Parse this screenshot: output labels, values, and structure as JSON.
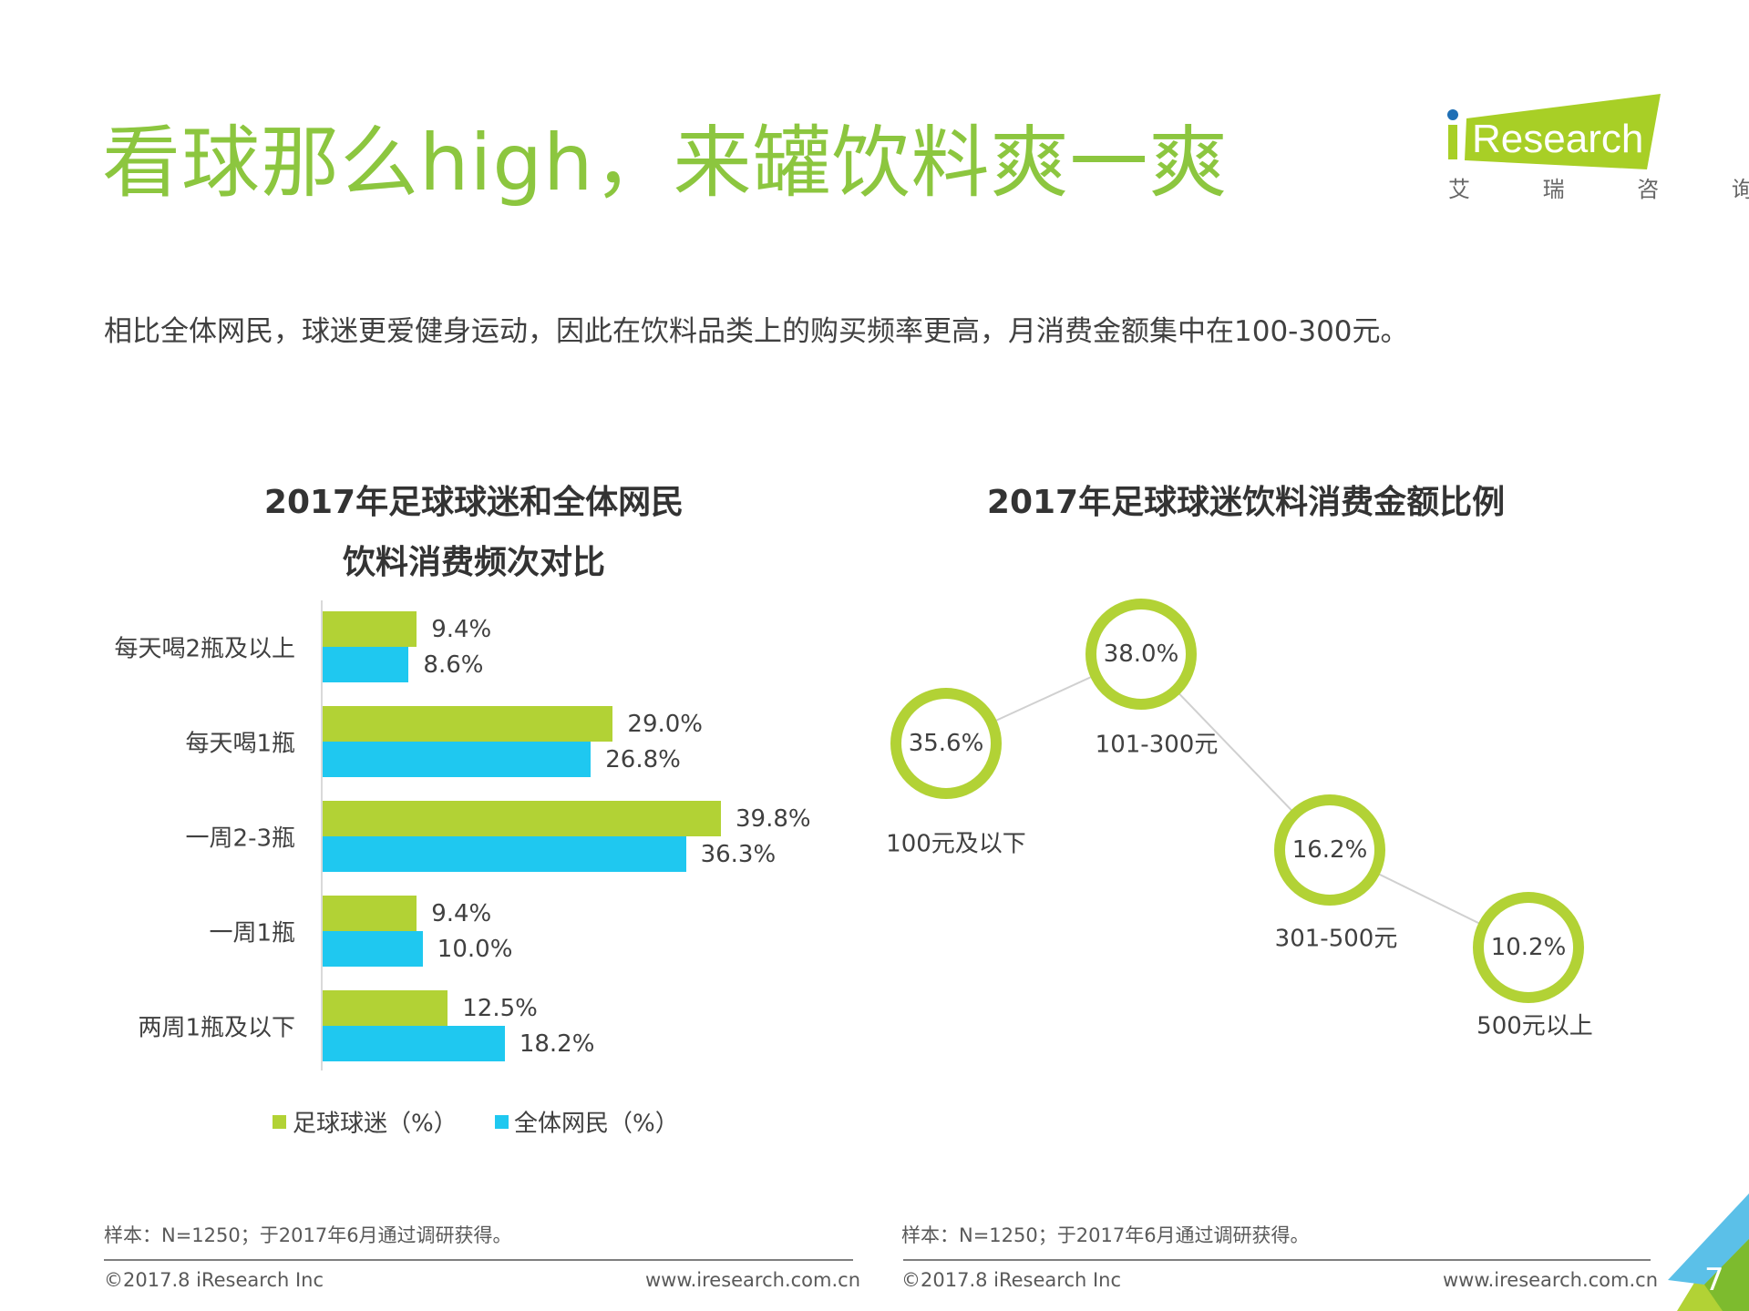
{
  "header": {
    "title": "看球那么high，来罐饮料爽一爽",
    "subtitle": "相比全体网民，球迷更爱健身运动，因此在饮料品类上的购买频率更高，月消费金额集中在100-300元。"
  },
  "logo": {
    "text": "iResearch",
    "cn": "艾 瑞 咨 询"
  },
  "colors": {
    "green": "#b2d235",
    "blue": "#1fc8f0",
    "title_green": "#8cc63f"
  },
  "chart_data": [
    {
      "type": "bar",
      "orientation": "horizontal",
      "title": [
        "2017年足球球迷和全体网民",
        "饮料消费频次对比"
      ],
      "categories": [
        "每天喝2瓶及以上",
        "每天喝1瓶",
        "一周2-3瓶",
        "一周1瓶",
        "两周1瓶及以下"
      ],
      "series": [
        {
          "name": "足球球迷（%）",
          "color": "#b2d235",
          "values": [
            9.4,
            29.0,
            39.8,
            9.4,
            12.5
          ],
          "labels": [
            "9.4%",
            "29.0%",
            "39.8%",
            "9.4%",
            "12.5%"
          ]
        },
        {
          "name": "全体网民（%）",
          "color": "#1fc8f0",
          "values": [
            8.6,
            26.8,
            36.3,
            10.0,
            18.2
          ],
          "labels": [
            "8.6%",
            "26.8%",
            "36.3%",
            "10.0%",
            "18.2%"
          ]
        }
      ],
      "legend": "bottom",
      "grid": false
    },
    {
      "type": "line",
      "title": "2017年足球球迷饮料消费金额比例",
      "categories": [
        "100元及以下",
        "101-300元",
        "301-500元",
        "500元以上"
      ],
      "values": [
        35.6,
        38.0,
        16.2,
        10.2
      ],
      "labels": [
        "35.6%",
        "38.0%",
        "16.2%",
        "10.2%"
      ],
      "marker_color": "#b2d235"
    }
  ],
  "footer": {
    "note_left": "样本：N=1250；于2017年6月通过调研获得。",
    "note_right": "样本：N=1250；于2017年6月通过调研获得。",
    "copyright_left": "©2017.8 iResearch Inc",
    "url_left": "www.iresearch.com.cn",
    "copyright_right": "©2017.8 iResearch Inc",
    "url_right": "www.iresearch.com.cn",
    "page": "7"
  }
}
